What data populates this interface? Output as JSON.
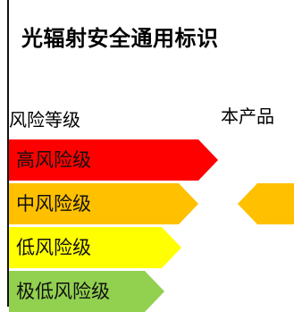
{
  "title": "光辐射安全通用标识",
  "risk_header": "风险等级",
  "product_header": "本产品",
  "levels": [
    {
      "label": "高风险级",
      "color": "#ff0000"
    },
    {
      "label": "中风险级",
      "color": "#ffc000"
    },
    {
      "label": "低风险级",
      "color": "#ffff00"
    },
    {
      "label": "极低风险级",
      "color": "#92d050"
    }
  ],
  "product_marker": {
    "level": "中风险级",
    "color": "#ffc000"
  }
}
